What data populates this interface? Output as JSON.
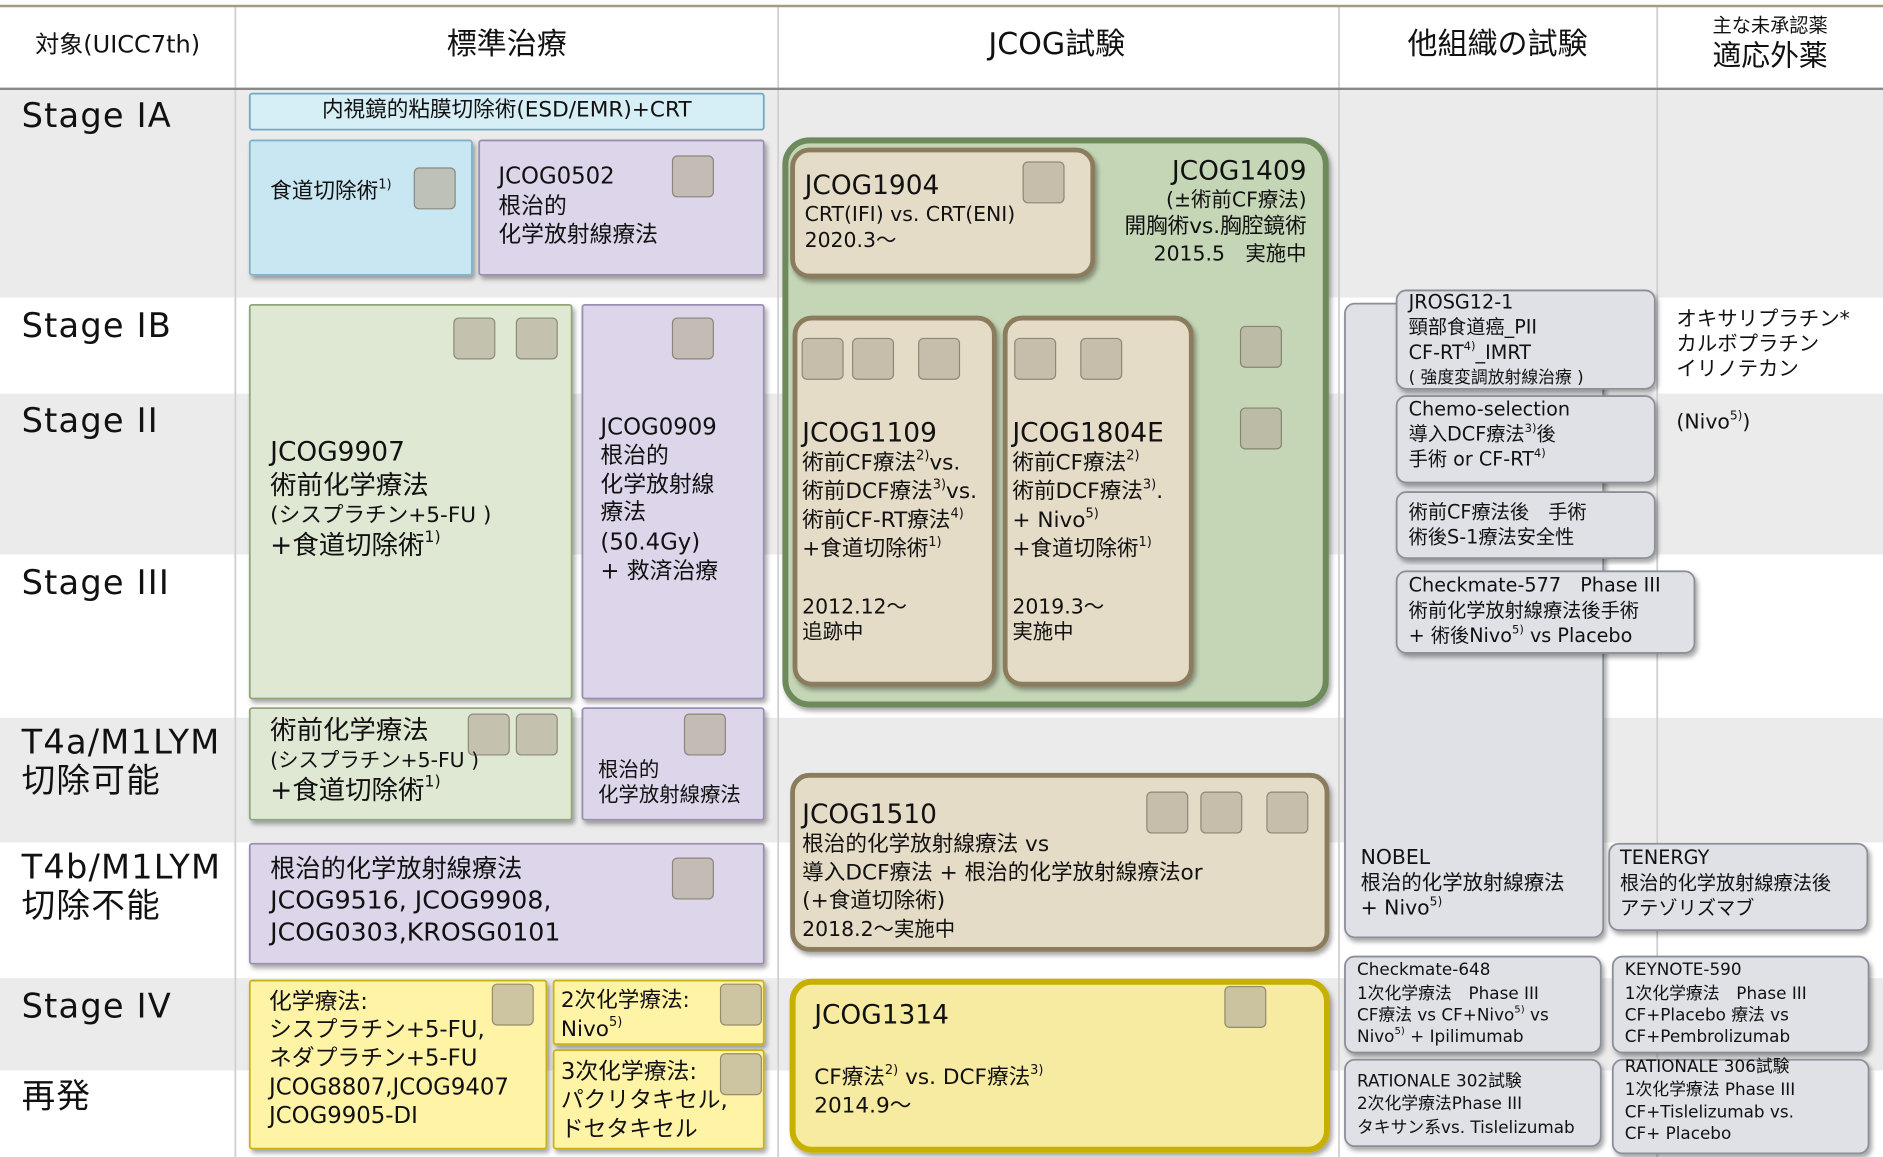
{
  "header": {
    "columns": [
      [
        "対象(UICC7th)"
      ],
      [
        "標準治療"
      ],
      [
        "JCOG試験"
      ],
      [
        "他組織の試験"
      ],
      [
        "主な未承認薬",
        "適応外薬"
      ]
    ]
  },
  "row_labels": [
    [
      "Stage IA"
    ],
    [
      "Stage IB"
    ],
    [
      "Stage II"
    ],
    [
      "Stage III"
    ],
    [
      "T4a/M1LYM",
      "切除可能"
    ],
    [
      "T4b/M1LYM",
      "切除不能"
    ],
    [
      "Stage IV"
    ],
    [
      "再発"
    ]
  ],
  "boxes": [
    {
      "lines": [
        [
          "内視鏡的粘膜切除術(ESD/EMR)+CRT"
        ]
      ]
    },
    {
      "lines": [
        [
          "食道切除術",
          "1)"
        ]
      ]
    },
    {
      "lines": [
        [
          "JCOG0502"
        ],
        [
          "根治的"
        ],
        [
          "化学放射線療法"
        ]
      ]
    },
    {
      "lines": [
        [
          "JCOG9907"
        ],
        [
          "術前化学療法"
        ],
        [
          "(シスプラチン+5-FU )"
        ],
        [
          "+食道切除術",
          "1)"
        ]
      ]
    },
    {
      "lines": [
        [
          "JCOG0909"
        ],
        [
          "根治的"
        ],
        [
          "化学放射線"
        ],
        [
          "療法"
        ],
        [
          "(50.4Gy)"
        ],
        [
          "+ 救済治療"
        ]
      ]
    },
    {
      "lines": [
        [
          "術前化学療法"
        ],
        [
          "(シスプラチン+5-FU )"
        ],
        [
          "+食道切除術",
          "1)"
        ]
      ]
    },
    {
      "lines": [
        [
          "根治的"
        ],
        [
          "化学放射線療法"
        ]
      ]
    },
    {
      "lines": [
        [
          "根治的化学放射線療法"
        ],
        [
          "JCOG9516, JCOG9908,"
        ],
        [
          "JCOG0303,KROSG0101"
        ]
      ]
    },
    {
      "lines": [
        [
          "化学療法:"
        ],
        [
          "シスプラチン+5-FU,"
        ],
        [
          "ネダプラチン+5-FU"
        ],
        [
          "JCOG8807,JCOG9407"
        ],
        [
          "JCOG9905-DI"
        ]
      ]
    },
    {
      "lines": [
        [
          "2次化学療法:"
        ],
        [
          "Nivo",
          "5)"
        ]
      ]
    },
    {
      "lines": [
        [
          "3次化学療法:"
        ],
        [
          "パクリタキセル,"
        ],
        [
          "ドセタキセル"
        ]
      ]
    },
    {
      "lines": [
        [
          "JCOG1409"
        ],
        [
          "(±術前CF療法)"
        ],
        [
          "開胸術vs.胸腔鏡術"
        ],
        [
          "2015.5　実施中"
        ]
      ]
    },
    {
      "lines": [
        [
          "JCOG1904"
        ],
        [
          "CRT(IFI) vs. CRT(ENI)"
        ],
        [
          "2020.3～"
        ]
      ]
    },
    {
      "lines": [
        [
          "JCOG1109"
        ],
        [
          "術前CF療法",
          "2)",
          "vs."
        ],
        [
          "術前DCF療法",
          "3)",
          "vs."
        ],
        [
          "術前CF-RT療法",
          "4)"
        ],
        [
          "+食道切除術",
          "1)"
        ],
        [
          "2012.12～"
        ],
        [
          "追跡中"
        ]
      ]
    },
    {
      "lines": [
        [
          "JCOG1804E"
        ],
        [
          "術前CF療法",
          "2)"
        ],
        [
          "術前DCF療法",
          "3)",
          "."
        ],
        [
          "+ Nivo",
          "5)"
        ],
        [
          "+食道切除術",
          "1)"
        ],
        [
          "2019.3～"
        ],
        [
          "実施中"
        ]
      ]
    },
    {
      "lines": [
        [
          "JCOG1510"
        ],
        [
          "根治的化学放射線療法 vs"
        ],
        [
          "導入DCF療法 + 根治的化学放射線療法or"
        ],
        [
          "(+食道切除術)"
        ],
        [
          "2018.2～実施中"
        ]
      ]
    },
    {
      "lines": [
        [
          "JCOG1314"
        ],
        [
          "CF療法",
          "2)",
          " vs. DCF療法",
          "3)"
        ],
        [
          "2014.9～"
        ]
      ]
    },
    {
      "lines": [
        [
          "NOBEL"
        ],
        [
          "根治的化学放射線療法"
        ],
        [
          " + Nivo",
          "5)"
        ]
      ]
    },
    {
      "lines": [
        [
          "JROSG12-1"
        ],
        [
          "頸部食道癌_PII"
        ],
        [
          "CF-RT",
          "4)",
          "_IMRT"
        ],
        [
          "( 強度変調放射線治療 )"
        ]
      ]
    },
    {
      "lines": [
        [
          "Chemo-selection"
        ],
        [
          "導入DCF療法",
          "3)",
          "後"
        ],
        [
          "手術 or CF-RT",
          "4)"
        ]
      ]
    },
    {
      "lines": [
        [
          "術前CF療法後　手術"
        ],
        [
          "術後S-1療法安全性"
        ]
      ]
    },
    {
      "lines": [
        [
          "Checkmate-577　Phase III"
        ],
        [
          "術前化学放射線療法後手術"
        ],
        [
          " + 術後Nivo",
          "5)",
          " vs Placebo"
        ]
      ]
    },
    {
      "lines": [
        [
          "TENERGY"
        ],
        [
          "根治的化学放射線療法後"
        ],
        [
          "アテゾリズマブ"
        ]
      ]
    },
    {
      "lines": [
        [
          "Checkmate-648"
        ],
        [
          "1次化学療法　Phase III"
        ],
        [
          "CF療法 vs CF+Nivo",
          "5)",
          " vs"
        ],
        [
          "Nivo",
          "5)",
          " + Ipilimumab"
        ]
      ]
    },
    {
      "lines": [
        [
          "KEYNOTE-590"
        ],
        [
          "1次化学療法　Phase III"
        ],
        [
          "CF+Placebo 療法 vs"
        ],
        [
          "CF+Pembrolizumab"
        ]
      ]
    },
    {
      "lines": [
        [
          "RATIONALE 302試験"
        ],
        [
          "2次化学療法Phase III"
        ],
        [
          "タキサン系vs. Tislelizumab"
        ]
      ]
    },
    {
      "lines": [
        [
          "RATIONALE 306試験"
        ],
        [
          "1次化学療法 Phase III"
        ],
        [
          "CF+Tislelizumab vs."
        ],
        [
          "CF+ Placebo"
        ]
      ]
    }
  ],
  "off_label": {
    "lines": [
      [
        "オキサリプラチン*"
      ],
      [
        "カルボプラチン"
      ],
      [
        "イリノテカン"
      ],
      [
        "(Nivo",
        "5)",
        ")"
      ]
    ]
  }
}
